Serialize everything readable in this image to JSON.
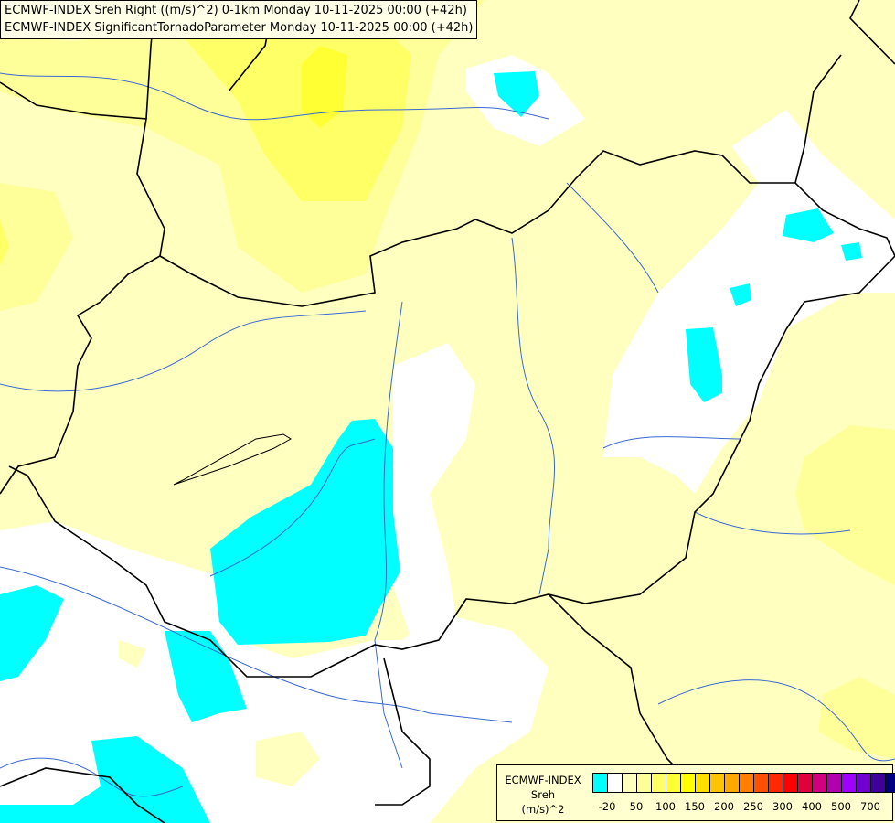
{
  "titles": [
    "ECMWF-INDEX Sreh Right ((m/s)^2) 0-1km Monday 10-11-2025 00:00 (+42h)",
    "ECMWF-INDEX SignificantTornadoParameter Monday 10-11-2025 00:00 (+42h)"
  ],
  "legend": {
    "line1": "ECMWF-INDEX",
    "line2": "Sreh",
    "line3": "(m/s)^2",
    "colors": [
      "#00ffff",
      "#ffffff",
      "#ffffc0",
      "#ffff99",
      "#ffff66",
      "#ffff33",
      "#ffff00",
      "#ffe000",
      "#ffc400",
      "#ffa800",
      "#ff8000",
      "#ff5000",
      "#ff2800",
      "#ff0000",
      "#e0003c",
      "#d00080",
      "#b000b0",
      "#a000ff",
      "#7000d0",
      "#4000a0",
      "#000080"
    ],
    "tick_labels": [
      "-20",
      "50",
      "100",
      "150",
      "200",
      "250",
      "300",
      "400",
      "500",
      "700"
    ]
  },
  "map_colors": {
    "background": "#ffffc0",
    "light_yellow": "#ffff99",
    "yellow": "#ffff66",
    "bright_yellow": "#ffff33",
    "white": "#ffffff",
    "cyan": "#00ffff",
    "border": "#000000",
    "river": "#3a6ad0"
  }
}
